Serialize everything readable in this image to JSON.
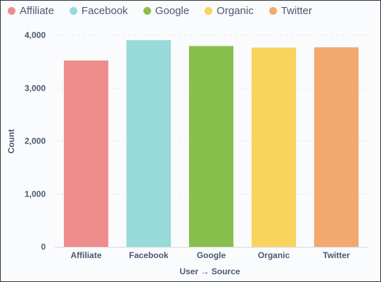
{
  "legend": {
    "items": [
      {
        "label": "Affiliate",
        "color": "#ef8c8c"
      },
      {
        "label": "Facebook",
        "color": "#98d9d9"
      },
      {
        "label": "Google",
        "color": "#88bf4d"
      },
      {
        "label": "Organic",
        "color": "#f9d45c"
      },
      {
        "label": "Twitter",
        "color": "#f2a86f"
      }
    ]
  },
  "chart_data": {
    "type": "bar",
    "categories": [
      "Affiliate",
      "Facebook",
      "Google",
      "Organic",
      "Twitter"
    ],
    "values": [
      3520,
      3905,
      3795,
      3765,
      3770
    ],
    "colors": [
      "#ef8c8c",
      "#98d9d9",
      "#88bf4d",
      "#f9d45c",
      "#f2a86f"
    ],
    "xlabel": "User → Source",
    "ylabel": "Count",
    "ylim": [
      0,
      4000
    ],
    "yticks": [
      0,
      1000,
      2000,
      3000,
      4000
    ],
    "ytick_labels": [
      "0",
      "1,000",
      "2,000",
      "3,000",
      "4,000"
    ],
    "grid": true,
    "legend_position": "top-left"
  }
}
